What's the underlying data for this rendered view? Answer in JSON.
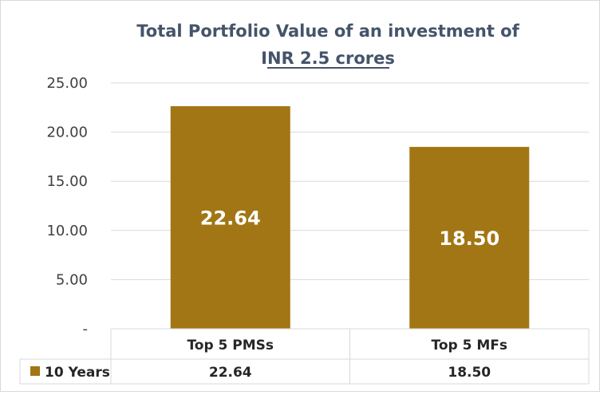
{
  "chart_data": {
    "type": "bar",
    "title": "Total Portfolio Value of an investment of",
    "subtitle": "INR 2.5 crores",
    "categories": [
      "Top 5 PMSs",
      "Top 5 MFs"
    ],
    "series": [
      {
        "name": "10 Years",
        "values": [
          22.64,
          18.5
        ],
        "value_labels": [
          "22.64",
          "18.50"
        ],
        "color": "#a27614"
      }
    ],
    "ylim": [
      0,
      25
    ],
    "y_ticks": [
      0,
      5,
      10,
      15,
      20,
      25
    ],
    "y_tick_labels": [
      "-",
      "5.00",
      "10.00",
      "15.00",
      "20.00",
      "25.00"
    ],
    "xlabel": "",
    "ylabel": "",
    "grid": true,
    "legend": "data-table",
    "data_table": true
  },
  "colors": {
    "bar": "#a27614",
    "title": "#44546a",
    "grid": "#d9d9d9",
    "text": "#262626"
  }
}
